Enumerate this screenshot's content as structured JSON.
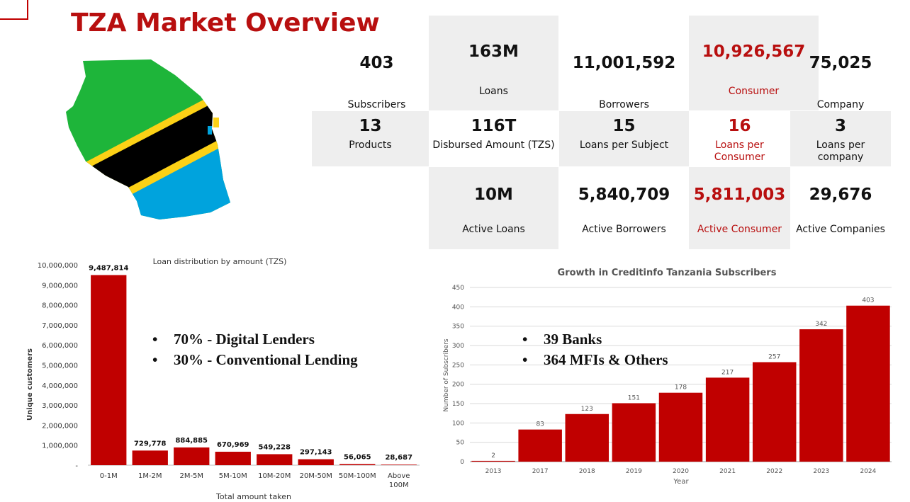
{
  "title": "TZA Market Overview",
  "stats": [
    {
      "id": "subscribers",
      "value": "403",
      "label": "Subscribers"
    },
    {
      "id": "loans",
      "value": "163M",
      "label": "Loans"
    },
    {
      "id": "borrowers",
      "value": "11,001,592",
      "label": "Borrowers"
    },
    {
      "id": "consumer",
      "value": "10,926,567",
      "label": "Consumer"
    },
    {
      "id": "company",
      "value": "75,025",
      "label": "Company"
    },
    {
      "id": "products",
      "value": "13",
      "label": "Products"
    },
    {
      "id": "disbursed",
      "value": "116T",
      "label": "Disbursed Amount (TZS)"
    },
    {
      "id": "loans-per-subject",
      "value": "15",
      "label": "Loans per Subject"
    },
    {
      "id": "loans-per-consumer",
      "value": "16",
      "label": "Loans per Consumer"
    },
    {
      "id": "loans-per-company",
      "value": "3",
      "label": "Loans per company"
    },
    {
      "id": "active-loans",
      "value": "10M",
      "label": "Active Loans"
    },
    {
      "id": "active-borrowers",
      "value": "5,840,709",
      "label": "Active Borrowers"
    },
    {
      "id": "active-consumer",
      "value": "5,811,003",
      "label": "Active Consumer"
    },
    {
      "id": "active-companies",
      "value": "29,676",
      "label": "Active Companies"
    }
  ],
  "colors": {
    "accent": "#b80f0f",
    "bar": "#c00000",
    "cell_gray": "#eeeeee",
    "flag_green": "#1eb53a",
    "flag_yellow": "#fcd116",
    "flag_black": "#000000",
    "flag_blue": "#00a3dd"
  },
  "loan_bullets": [
    "70% - Digital Lenders",
    "30% - Conventional Lending"
  ],
  "subscriber_bullets": [
    "39 Banks",
    "364 MFIs & Others"
  ],
  "chart_data": [
    {
      "type": "bar",
      "title": "Loan distribution by amount (TZS)",
      "xlabel": "Total amount taken",
      "ylabel": "Unique customers",
      "categories": [
        "0-1M",
        "1M-2M",
        "2M-5M",
        "5M-10M",
        "10M-20M",
        "20M-50M",
        "50M-100M",
        "Above 100M"
      ],
      "values": [
        9487814,
        729778,
        884885,
        670969,
        549228,
        297143,
        56065,
        28687
      ],
      "data_labels": [
        "9,487,814",
        "729,778",
        "884,885",
        "670,969",
        "549,228",
        "297,143",
        "56,065",
        "28,687"
      ],
      "ylim": [
        0,
        10000000
      ],
      "yticks": [
        0,
        1000000,
        2000000,
        3000000,
        4000000,
        5000000,
        6000000,
        7000000,
        8000000,
        9000000,
        10000000
      ],
      "ytick_labels": [
        "-",
        "1,000,000",
        "2,000,000",
        "3,000,000",
        "4,000,000",
        "5,000,000",
        "6,000,000",
        "7,000,000",
        "8,000,000",
        "9,000,000",
        "10,000,000"
      ],
      "grid": false
    },
    {
      "type": "bar",
      "title": "Growth in Creditinfo Tanzania Subscribers",
      "xlabel": "Year",
      "ylabel": "Number of Subscribers",
      "categories": [
        "2013",
        "2017",
        "2018",
        "2019",
        "2020",
        "2021",
        "2022",
        "2023",
        "2024"
      ],
      "values": [
        2,
        83,
        123,
        151,
        178,
        217,
        257,
        342,
        403
      ],
      "ylim": [
        0,
        450
      ],
      "yticks": [
        0,
        50,
        100,
        150,
        200,
        250,
        300,
        350,
        400,
        450
      ],
      "grid": true
    }
  ]
}
